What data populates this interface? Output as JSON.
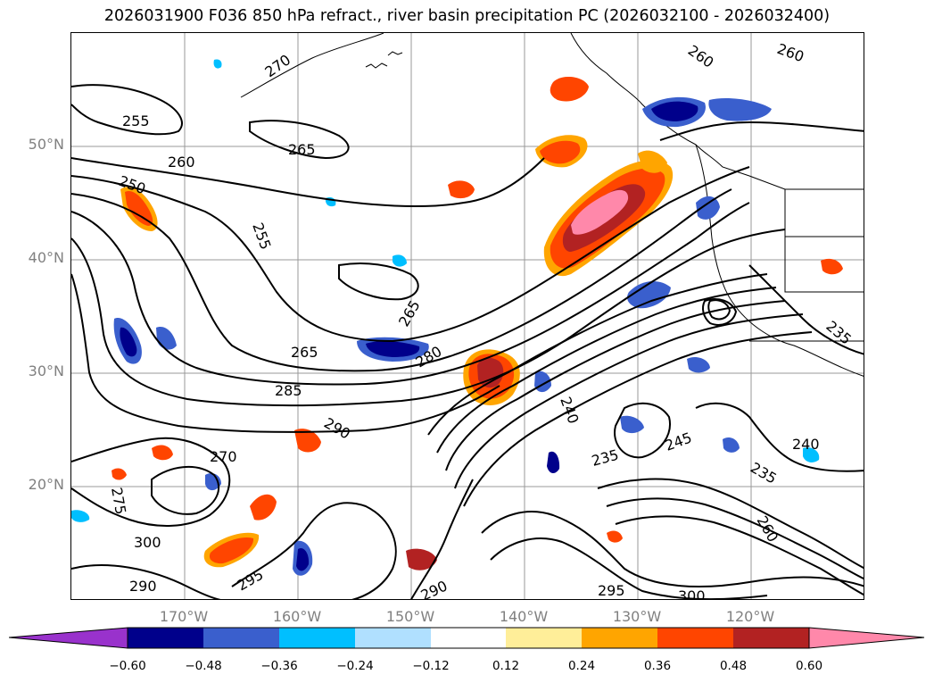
{
  "title": "2026031900 F036 850 hPa refract., river basin precipitation PC (2026032100 - 2026032400)",
  "lat_ticks": [
    "50°N",
    "40°N",
    "30°N",
    "20°N"
  ],
  "lon_ticks": [
    "170°W",
    "160°W",
    "150°W",
    "140°W",
    "130°W",
    "120°W"
  ],
  "contour_labels": [
    "270",
    "260",
    "260",
    "255",
    "265",
    "260",
    "250",
    "255",
    "265",
    "265",
    "285",
    "290",
    "280",
    "240",
    "245",
    "235",
    "235",
    "240",
    "270",
    "300",
    "295",
    "290",
    "290",
    "295",
    "300",
    "235",
    "275",
    "260"
  ],
  "colorbar": {
    "colors": [
      "#9932cc",
      "#00008b",
      "#3a5fcd",
      "#00bfff",
      "#b0e0ff",
      "#ffffff",
      "#ffee99",
      "#ffa500",
      "#ff4500",
      "#b22222",
      "#ff88aa"
    ],
    "tick_labels": [
      "−0.60",
      "−0.48",
      "−0.36",
      "−0.24",
      "−0.12",
      "0.12",
      "0.24",
      "0.36",
      "0.48",
      "0.60"
    ]
  }
}
